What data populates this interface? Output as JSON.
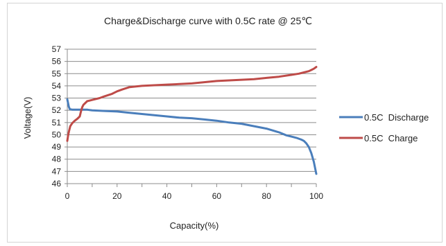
{
  "chart_data": {
    "type": "line",
    "title": "Charge&Discharge  curve with 0.5C rate @ 25℃",
    "xlabel": "Capacity(%)",
    "ylabel": "Voltage(V)",
    "xlim": [
      0,
      100
    ],
    "ylim": [
      46,
      57
    ],
    "xticks": [
      0,
      20,
      40,
      60,
      80,
      100
    ],
    "yticks": [
      46,
      47,
      48,
      49,
      50,
      51,
      52,
      53,
      54,
      55,
      56,
      57
    ],
    "grid": "horizontal",
    "legend_position": "right",
    "series": [
      {
        "name": "0.5C  Discharge",
        "color": "#4a7ebb",
        "x": [
          0,
          0.3,
          0.6,
          1,
          2,
          4,
          6,
          8,
          10,
          15,
          20,
          25,
          30,
          35,
          40,
          45,
          50,
          55,
          60,
          65,
          70,
          75,
          80,
          85,
          88,
          90,
          92,
          94,
          95,
          96,
          97,
          98,
          99,
          100
        ],
        "y": [
          52.9,
          52.6,
          52.3,
          52.1,
          52.05,
          52.05,
          52.05,
          52.05,
          52.0,
          51.95,
          51.9,
          51.8,
          51.7,
          51.6,
          51.5,
          51.4,
          51.35,
          51.25,
          51.15,
          51.0,
          50.9,
          50.7,
          50.5,
          50.2,
          49.95,
          49.85,
          49.75,
          49.6,
          49.5,
          49.3,
          49.0,
          48.5,
          47.8,
          46.8
        ]
      },
      {
        "name": "0.5C  Charge",
        "color": "#be4b48",
        "x": [
          0,
          0.3,
          0.7,
          1.2,
          2,
          3,
          4,
          5,
          5.5,
          6,
          6.5,
          7,
          8,
          10,
          13,
          15,
          18,
          20,
          22,
          25,
          30,
          35,
          40,
          45,
          50,
          55,
          60,
          65,
          70,
          75,
          80,
          85,
          90,
          93,
          95,
          97,
          98,
          99,
          100
        ],
        "y": [
          49.5,
          49.9,
          50.3,
          50.7,
          50.95,
          51.15,
          51.3,
          51.5,
          51.9,
          52.25,
          52.45,
          52.55,
          52.75,
          52.85,
          53.0,
          53.15,
          53.35,
          53.55,
          53.7,
          53.9,
          54.0,
          54.05,
          54.1,
          54.15,
          54.2,
          54.3,
          54.4,
          54.45,
          54.5,
          54.55,
          54.65,
          54.75,
          54.9,
          55.0,
          55.1,
          55.2,
          55.3,
          55.4,
          55.55
        ]
      }
    ]
  }
}
